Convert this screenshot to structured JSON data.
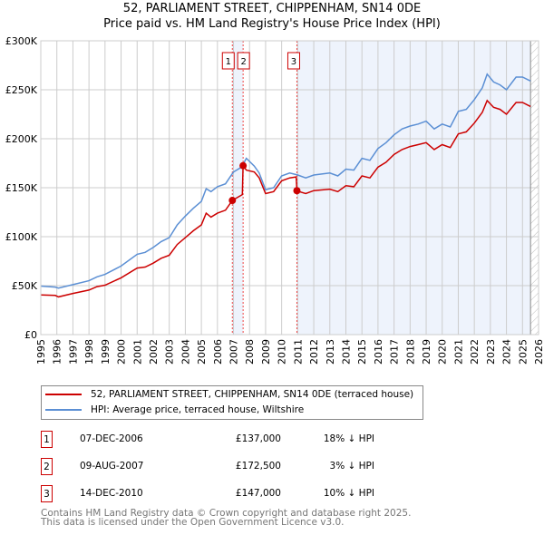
{
  "chart_data": {
    "type": "line",
    "title": "52, PARLIAMENT STREET, CHIPPENHAM, SN14 0DE",
    "subtitle": "Price paid vs. HM Land Registry's House Price Index (HPI)",
    "xlim": [
      1995,
      2026
    ],
    "ylim": [
      0,
      300000
    ],
    "y_ticks": [
      0,
      50000,
      100000,
      150000,
      200000,
      250000,
      300000
    ],
    "y_tick_labels": [
      "£0",
      "£50K",
      "£100K",
      "£150K",
      "£200K",
      "£250K",
      "£300K"
    ],
    "x_ticks": [
      1995,
      1996,
      1997,
      1998,
      1999,
      2000,
      2001,
      2002,
      2003,
      2004,
      2005,
      2006,
      2007,
      2008,
      2009,
      2010,
      2011,
      2012,
      2013,
      2014,
      2015,
      2016,
      2017,
      2018,
      2019,
      2020,
      2021,
      2022,
      2023,
      2024,
      2025,
      2026
    ],
    "grid": true,
    "colors": {
      "property": "#cc0000",
      "hpi": "#5b8fd4",
      "shade": "#eef3fc"
    },
    "series": [
      {
        "name": "HPI: Average price, terraced house, Wiltshire",
        "key": "hpi",
        "x": [
          1995,
          1995.9,
          1996.1,
          1997,
          1998,
          1998.5,
          1999,
          2000,
          2001,
          2001.5,
          2002,
          2002.5,
          2003,
          2003.5,
          2004,
          2004.5,
          2005,
          2005.3,
          2005.6,
          2006,
          2006.5,
          2007,
          2007.5,
          2007.8,
          2008.3,
          2008.6,
          2009,
          2009.5,
          2010,
          2010.5,
          2011,
          2011.5,
          2012,
          2013,
          2013.5,
          2014,
          2014.5,
          2015,
          2015.5,
          2016,
          2016.5,
          2017,
          2017.5,
          2018,
          2018.5,
          2019,
          2019.5,
          2020,
          2020.5,
          2021,
          2021.5,
          2022,
          2022.5,
          2022.8,
          2023.2,
          2023.6,
          2024,
          2024.6,
          2025,
          2025.5
        ],
        "y": [
          49500,
          48500,
          47500,
          51000,
          55000,
          59000,
          61500,
          70000,
          82000,
          84000,
          89000,
          95000,
          99000,
          112000,
          121000,
          129000,
          136000,
          149000,
          146000,
          151000,
          154000,
          166000,
          171000,
          180000,
          172000,
          165000,
          148000,
          150000,
          162000,
          165000,
          163000,
          160000,
          163000,
          165000,
          162000,
          169000,
          168000,
          180000,
          178000,
          190000,
          196000,
          204000,
          210000,
          213000,
          215000,
          218000,
          210000,
          215000,
          212000,
          228000,
          230000,
          240000,
          252000,
          266000,
          258000,
          255000,
          250000,
          263000,
          263000,
          259000
        ]
      },
      {
        "name": "52, PARLIAMENT STREET, CHIPPENHAM, SN14 0DE (terraced house)",
        "key": "property",
        "x": [
          1995,
          1995.9,
          1996.1,
          1997,
          1998,
          1998.5,
          1999,
          2000,
          2001,
          2001.5,
          2002,
          2002.5,
          2003,
          2003.5,
          2004,
          2004.5,
          2005,
          2005.3,
          2005.6,
          2006,
          2006.5,
          2006.93,
          2007.55,
          2007.6,
          2007.8,
          2008.3,
          2008.6,
          2009,
          2009.5,
          2010,
          2010.5,
          2010.9,
          2010.95,
          2011,
          2011.5,
          2012,
          2013,
          2013.5,
          2014,
          2014.5,
          2015,
          2015.5,
          2016,
          2016.5,
          2017,
          2017.5,
          2018,
          2018.5,
          2019,
          2019.5,
          2020,
          2020.5,
          2021,
          2021.5,
          2022,
          2022.5,
          2022.8,
          2023.2,
          2023.6,
          2024,
          2024.6,
          2025,
          2025.5
        ],
        "y": [
          40500,
          40000,
          38500,
          42000,
          45500,
          49000,
          50500,
          58000,
          68000,
          69000,
          73000,
          78000,
          81000,
          92000,
          99000,
          106000,
          112000,
          124000,
          120000,
          124000,
          127000,
          137000,
          143000,
          172500,
          168000,
          166000,
          160000,
          144000,
          146000,
          157000,
          160000,
          161000,
          147000,
          146500,
          144000,
          147000,
          148500,
          146000,
          152000,
          151000,
          162000,
          160000,
          171000,
          176000,
          184000,
          189000,
          192000,
          194000,
          196000,
          189000,
          194000,
          191000,
          205000,
          207000,
          216000,
          227000,
          239000,
          232000,
          230000,
          225000,
          237000,
          237000,
          233000
        ]
      }
    ],
    "shaded_periods": [
      [
        2006.93,
        2007.6
      ],
      [
        2010.95,
        2025.5
      ]
    ],
    "forecast_hatch_from": 2025.5,
    "sales": [
      {
        "id": "1",
        "x": 2006.93,
        "y": 137000
      },
      {
        "id": "2",
        "x": 2007.6,
        "y": 172500
      },
      {
        "id": "3",
        "x": 2010.95,
        "y": 147000
      }
    ]
  },
  "legend": {
    "property": "52, PARLIAMENT STREET, CHIPPENHAM, SN14 0DE (terraced house)",
    "hpi": "HPI: Average price, terraced house, Wiltshire"
  },
  "transactions": [
    {
      "id": "1",
      "date": "07-DEC-2006",
      "price": "£137,000",
      "hpi": "18% ↓ HPI"
    },
    {
      "id": "2",
      "date": "09-AUG-2007",
      "price": "£172,500",
      "hpi": "3% ↓ HPI"
    },
    {
      "id": "3",
      "date": "14-DEC-2010",
      "price": "£147,000",
      "hpi": "10% ↓ HPI"
    }
  ],
  "footer": {
    "line1": "Contains HM Land Registry data © Crown copyright and database right 2025.",
    "line2": "This data is licensed under the Open Government Licence v3.0."
  }
}
